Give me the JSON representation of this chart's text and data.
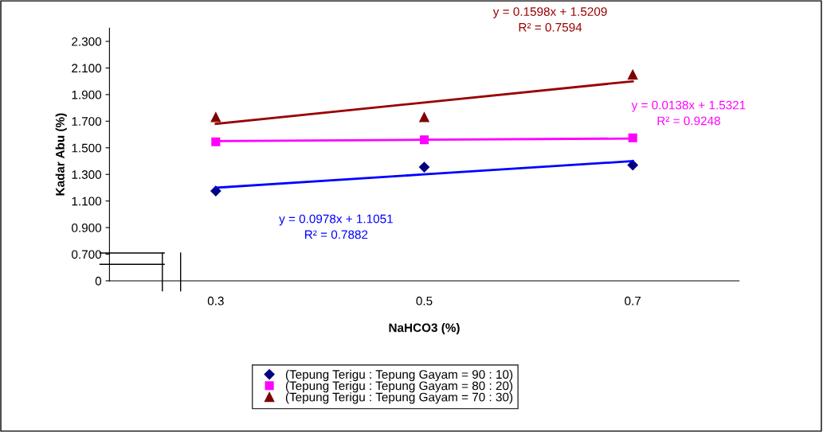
{
  "chart_data": {
    "type": "scatter",
    "xlabel": "NaHCO3 (%)",
    "ylabel": "Kadar Abu (%)",
    "categories": [
      "0.3",
      "0.5",
      "0.7"
    ],
    "ylim": [
      0.5,
      2.4
    ],
    "yticks": [
      {
        "value": 0.5,
        "label": "0"
      },
      {
        "value": 0.7,
        "label": "0.700"
      },
      {
        "value": 0.9,
        "label": "0.900"
      },
      {
        "value": 1.1,
        "label": "1.100"
      },
      {
        "value": 1.3,
        "label": "1.300"
      },
      {
        "value": 1.5,
        "label": "1.500"
      },
      {
        "value": 1.7,
        "label": "1.700"
      },
      {
        "value": 1.9,
        "label": "1.900"
      },
      {
        "value": 2.1,
        "label": "2.100"
      },
      {
        "value": 2.3,
        "label": "2.300"
      }
    ],
    "grid": false,
    "legend": "bottom",
    "series": [
      {
        "name": "(Tepung Terigu : Tepung Gayam = 90 : 10)",
        "marker": "diamond",
        "color": "#000080",
        "values": [
          1.175,
          1.355,
          1.37
        ]
      },
      {
        "name": "(Tepung Terigu : Tepung Gayam = 80 : 20)",
        "marker": "square",
        "color": "#ff00ff",
        "values": [
          1.545,
          1.56,
          1.575
        ]
      },
      {
        "name": "(Tepung Terigu : Tepung Gayam = 70 : 30)",
        "marker": "triangle",
        "color": "#800000",
        "values": [
          1.73,
          1.73,
          2.05
        ]
      },
      {
        "type": "line",
        "color": "#0000ff",
        "values": [
          1.2,
          1.3,
          1.4
        ]
      },
      {
        "type": "line",
        "color": "#ff00ff",
        "values": [
          1.55,
          1.56,
          1.57
        ]
      },
      {
        "type": "line",
        "color": "#990000",
        "values": [
          1.68,
          1.84,
          2.0
        ]
      }
    ],
    "annotations": [
      "y = 0.0978x + 1.1051\nR² = 0.7882",
      "y = 0.0138x + 1.5321\nR² = 0.9248",
      "y = 0.1598x + 1.5209\nR² = 0.7594"
    ]
  }
}
